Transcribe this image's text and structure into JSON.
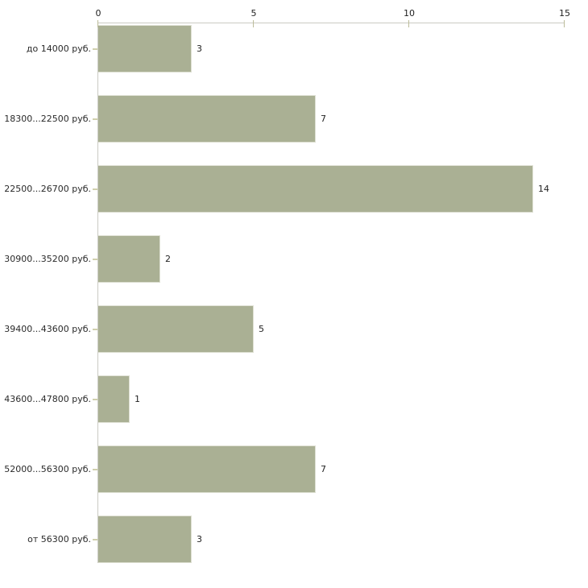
{
  "chart_data": {
    "type": "bar",
    "orientation": "horizontal",
    "title": "",
    "xlabel": "",
    "ylabel": "",
    "categories": [
      "до 14000 руб.",
      "18300...22500 руб.",
      "22500...26700 руб.",
      "30900...35200 руб.",
      "39400...43600 руб.",
      "43600...47800 руб.",
      "52000...56300 руб.",
      "от 56300 руб."
    ],
    "values": [
      3,
      7,
      14,
      2,
      5,
      1,
      7,
      3
    ],
    "value_labels": [
      "3",
      "7",
      "14",
      "2",
      "5",
      "1",
      "7",
      "3"
    ],
    "xlim": [
      0,
      15
    ],
    "x_ticks": [
      0,
      5,
      10,
      15
    ],
    "x_tick_labels": [
      "0",
      "5",
      "10",
      "15"
    ],
    "axis_position": "top",
    "grid": false,
    "legend": null,
    "colors": {
      "bar_fill": "#aab094",
      "axis_line": "#cbcbc3",
      "x_tick_mark": "#bcbc9a",
      "y_tick_mark": "#cfcfac",
      "text": "#1f1f1f",
      "background": "#ffffff"
    }
  }
}
